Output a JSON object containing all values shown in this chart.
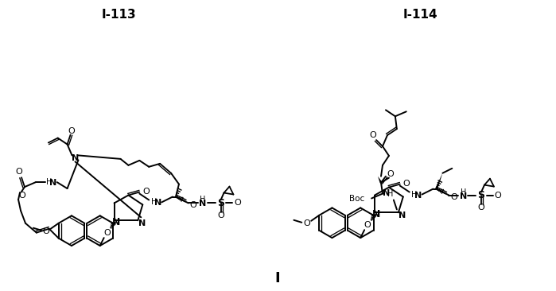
{
  "figsize": [
    6.99,
    3.66
  ],
  "dpi": 100,
  "bg": "#ffffff",
  "title": "I",
  "label_113": "I-113",
  "label_114": "I-114"
}
